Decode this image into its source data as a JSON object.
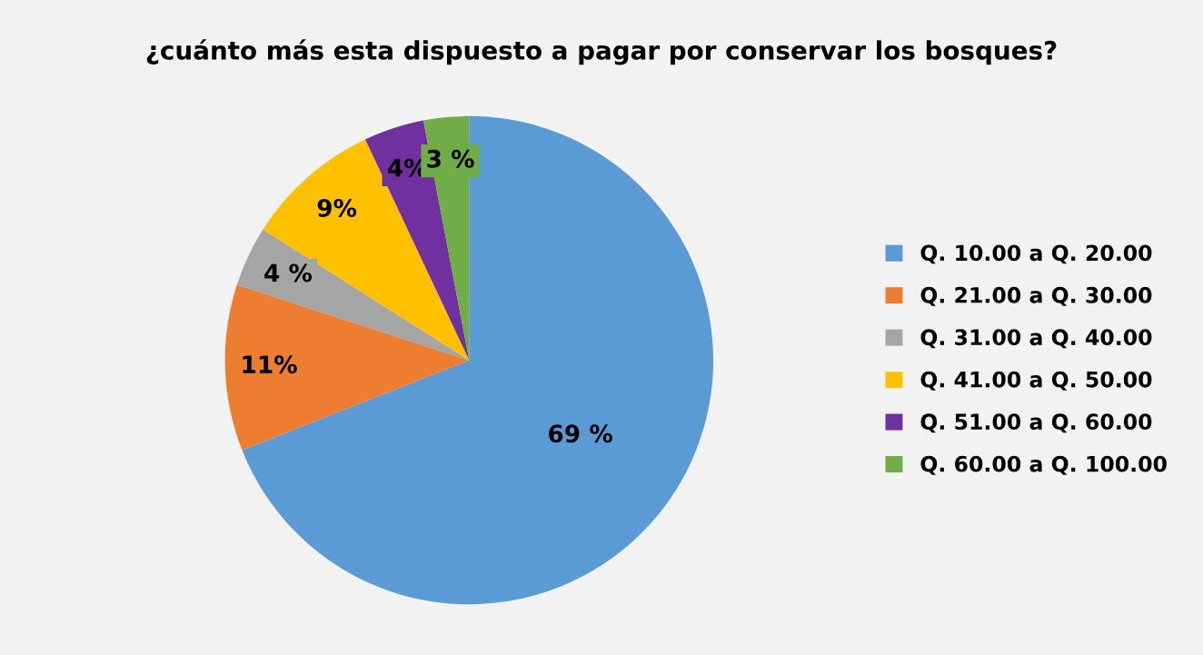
{
  "chart_data": {
    "type": "pie",
    "title": "¿cuánto más esta dispuesto a pagar por conservar los bosques?",
    "categories": [
      "Q. 10.00 a Q. 20.00",
      "Q. 21.00 a Q. 30.00",
      "Q. 31.00 a Q. 40.00",
      "Q. 41.00 a Q. 50.00",
      "Q. 51.00 a Q. 60.00",
      "Q. 60.00 a Q. 100.00"
    ],
    "values": [
      69,
      11,
      4,
      9,
      4,
      3
    ],
    "colors": [
      "#5b9bd5",
      "#ed7d31",
      "#a5a5a5",
      "#ffc000",
      "#7030a0",
      "#70ad47"
    ],
    "value_labels": [
      "69 %",
      "11%",
      "4 %",
      "9%",
      "4%",
      "3 %"
    ],
    "legend": "right"
  }
}
